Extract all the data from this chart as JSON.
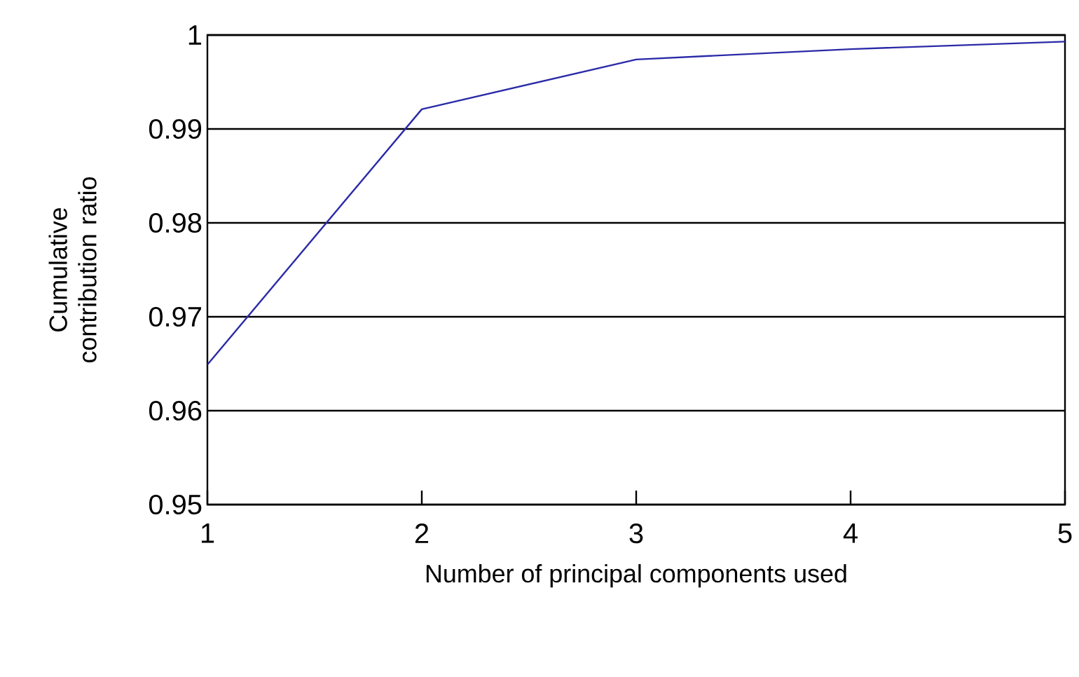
{
  "chart_data": {
    "type": "line",
    "xlabel": "Number of principal components used",
    "ylabel": "Cumulative contribution ratio",
    "x": [
      1,
      2,
      3,
      4,
      5
    ],
    "series": [
      {
        "color": "#2a2aa8",
        "values": [
          0.9649,
          0.9921,
          0.9974,
          0.9985,
          0.9993
        ]
      }
    ],
    "xlim": [
      1,
      5
    ],
    "xticks": [
      1,
      2,
      3,
      4,
      5
    ],
    "ylim": [
      0.95,
      1
    ],
    "yticks": [
      0.95,
      0.96,
      0.97,
      0.98,
      0.99,
      1
    ],
    "grid": "y",
    "marker": "none",
    "line_style": "solid"
  }
}
